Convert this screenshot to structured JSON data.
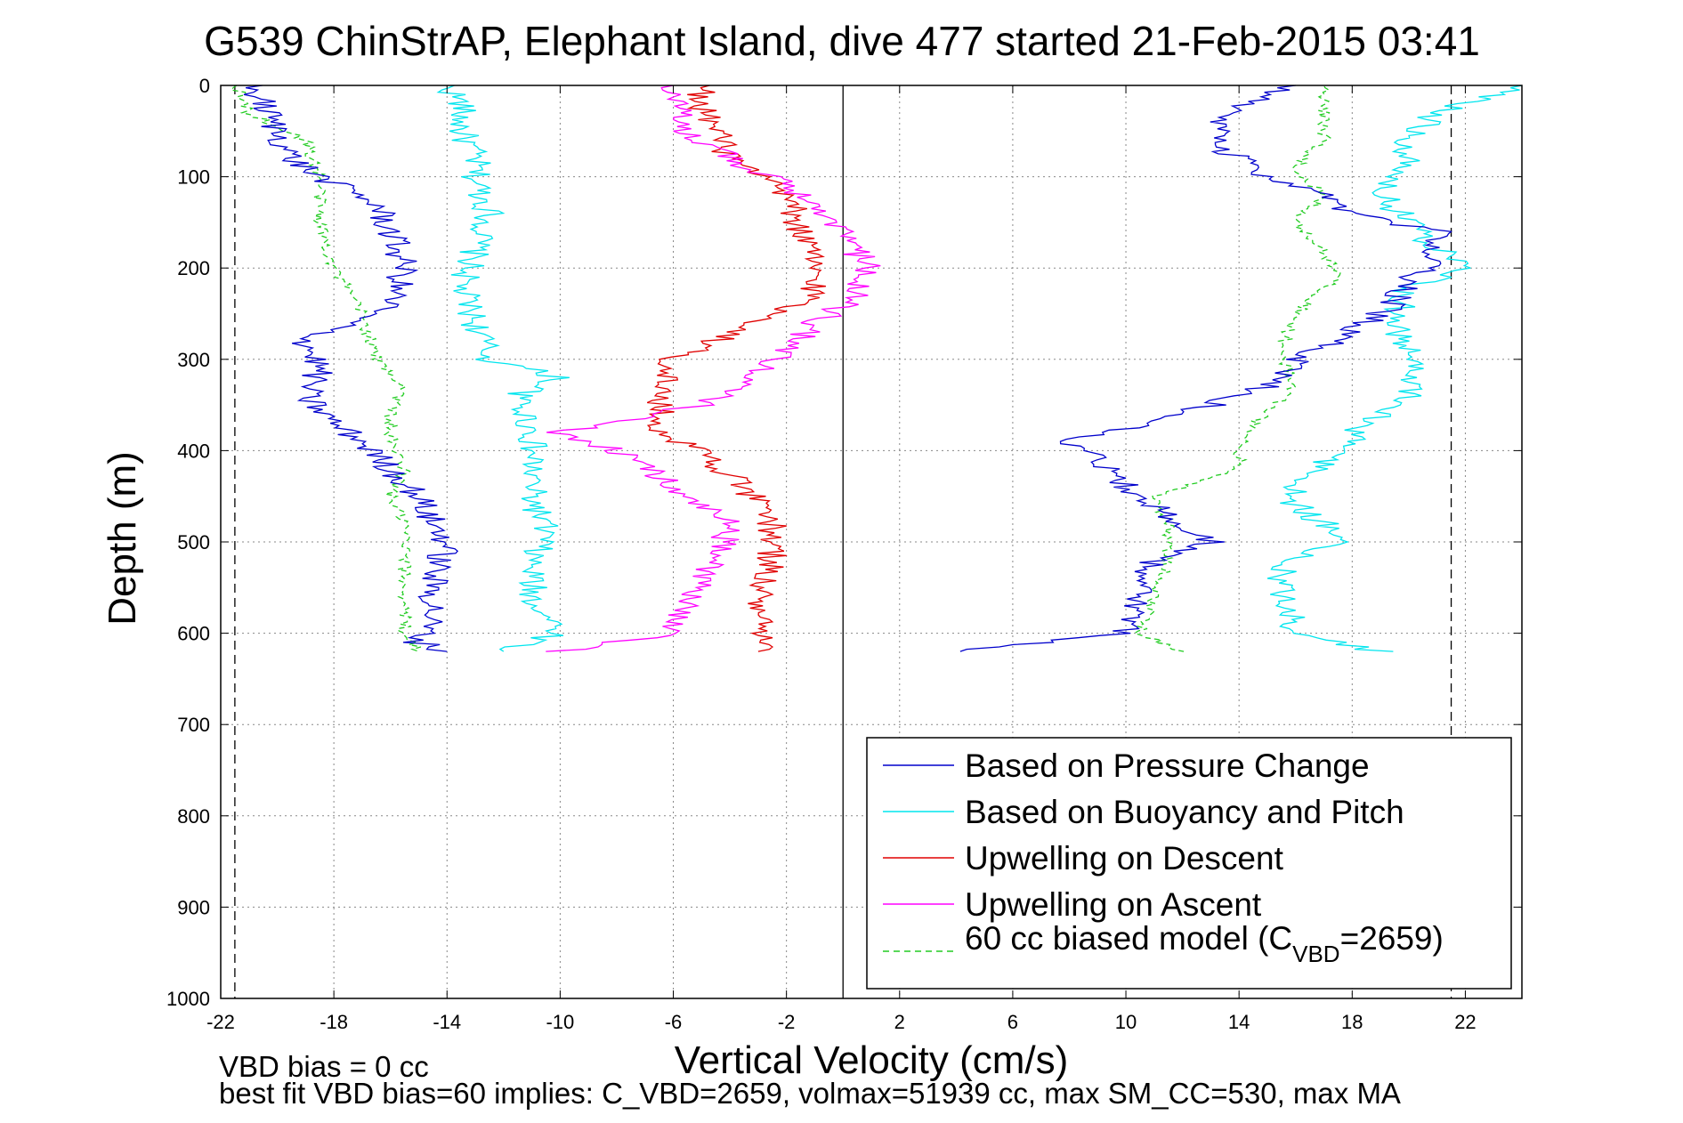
{
  "chart_data": {
    "type": "line",
    "title": "G539 ChinStrAP, Elephant Island, dive 477 started 21-Feb-2015 03:41",
    "xlabel": "Vertical Velocity (cm/s)",
    "ylabel": "Depth (m)",
    "xlim": [
      -22,
      24
    ],
    "ylim": [
      1000,
      0
    ],
    "y_reversed": true,
    "grid": true,
    "x_ticks": [
      -22,
      -18,
      -14,
      -10,
      -6,
      -2,
      2,
      6,
      10,
      14,
      18,
      22
    ],
    "x_tick_labels": [
      "-22",
      "-18",
      "-14",
      "-10",
      "-6",
      "-2",
      "2",
      "6",
      "10",
      "14",
      "18",
      "22"
    ],
    "y_ticks": [
      0,
      100,
      200,
      300,
      400,
      500,
      600,
      700,
      800,
      900,
      1000
    ],
    "y_tick_labels": [
      "0",
      "100",
      "200",
      "300",
      "400",
      "500",
      "600",
      "700",
      "800",
      "900",
      "1000"
    ],
    "reference_lines": {
      "zero_line_x": 0,
      "dashed_left_x": -21.5,
      "dashed_right_x": 21.5
    },
    "legend_position": "bottom-right",
    "legend": {
      "items": [
        {
          "label": "Based on Pressure Change",
          "color": "#0000cc",
          "style": "solid"
        },
        {
          "label": "Based on Buoyancy and Pitch",
          "color": "#00e5ee",
          "style": "solid"
        },
        {
          "label": "Upwelling on Descent",
          "color": "#e00000",
          "style": "solid"
        },
        {
          "label": "Upwelling on Ascent",
          "color": "#ff00ff",
          "style": "solid"
        }
      ],
      "model": {
        "prefix": "60 cc biased model (C",
        "sub": "VBD",
        "suffix": "=2659)",
        "color": "#22cc22",
        "style": "dashed"
      }
    },
    "series": [
      {
        "name": "Based on Pressure Change",
        "color": "#0000cc",
        "descent": {
          "depth": [
            0,
            20,
            50,
            80,
            100,
            130,
            160,
            200,
            240,
            280,
            310,
            340,
            370,
            390,
            420,
            450,
            480,
            500,
            540,
            580,
            610,
            620
          ],
          "v": [
            -21,
            -20.5,
            -20,
            -19.5,
            -18.5,
            -16.5,
            -16,
            -15.5,
            -16,
            -19,
            -18.5,
            -19,
            -18,
            -17,
            -16,
            -15,
            -14.5,
            -14,
            -14.5,
            -14.5,
            -15,
            -14
          ]
        },
        "ascent": {
          "depth": [
            620,
            600,
            560,
            520,
            500,
            470,
            440,
            410,
            390,
            370,
            350,
            330,
            300,
            270,
            240,
            210,
            190,
            160,
            140,
            120,
            100,
            70,
            40,
            0
          ],
          "v": [
            4,
            10,
            10.5,
            11,
            13,
            11.5,
            10,
            9,
            8,
            11,
            13,
            15,
            16,
            18,
            19.5,
            20,
            21,
            21,
            18,
            17,
            15,
            13.5,
            13,
            16
          ]
        }
      },
      {
        "name": "Based on Buoyancy and Pitch",
        "color": "#00e5ee",
        "descent": {
          "depth": [
            0,
            20,
            50,
            80,
            100,
            140,
            180,
            220,
            260,
            300,
            320,
            340,
            380,
            400,
            450,
            490,
            520,
            560,
            600,
            620
          ],
          "v": [
            -14,
            -13.5,
            -13.5,
            -13,
            -13,
            -12.5,
            -13,
            -13.5,
            -13,
            -12.5,
            -10,
            -11.5,
            -11,
            -11,
            -11,
            -10.5,
            -11,
            -11,
            -10,
            -12
          ]
        },
        "ascent": {
          "depth": [
            620,
            600,
            560,
            520,
            500,
            460,
            430,
            400,
            380,
            340,
            300,
            260,
            220,
            200,
            180,
            150,
            120,
            90,
            60,
            30,
            0
          ],
          "v": [
            19,
            16,
            15.5,
            15.5,
            18,
            16,
            16,
            18,
            18,
            20,
            20,
            19.5,
            20,
            22,
            21,
            20,
            19,
            20,
            20,
            21,
            24
          ]
        }
      },
      {
        "name": "Upwelling on Descent",
        "color": "#e00000",
        "descent": {
          "depth": [
            0,
            20,
            50,
            80,
            100,
            120,
            160,
            200,
            230,
            260,
            300,
            340,
            380,
            400,
            440,
            480,
            520,
            560,
            600,
            620
          ],
          "v": [
            -5,
            -5,
            -4.5,
            -4,
            -3,
            -2,
            -1.5,
            -1,
            -1,
            -3,
            -6,
            -6.5,
            -6.5,
            -5,
            -3.5,
            -2.5,
            -2.5,
            -3,
            -3,
            -3
          ]
        }
      },
      {
        "name": "Upwelling on Ascent",
        "color": "#ff00ff",
        "ascent": {
          "depth": [
            620,
            600,
            560,
            520,
            480,
            440,
            400,
            380,
            350,
            320,
            290,
            260,
            230,
            200,
            170,
            140,
            110,
            80,
            50,
            20,
            0
          ],
          "v": [
            -10,
            -6,
            -5.5,
            -4.5,
            -4,
            -6,
            -8,
            -10,
            -5,
            -3,
            -2,
            -1,
            0.5,
            1,
            0,
            -0.5,
            -2,
            -4,
            -5.5,
            -6,
            -6
          ]
        }
      },
      {
        "name": "60 cc biased model",
        "color": "#22cc22",
        "descent": {
          "depth": [
            0,
            30,
            60,
            100,
            150,
            200,
            250,
            300,
            330,
            360,
            390,
            420,
            450,
            480,
            520,
            560,
            600,
            620
          ],
          "v": [
            -21.5,
            -21,
            -19,
            -18.5,
            -18.5,
            -18,
            -17,
            -16.5,
            -15.5,
            -16,
            -16,
            -15.5,
            -16,
            -15.5,
            -15.5,
            -15.5,
            -15.5,
            -15
          ]
        },
        "ascent": {
          "depth": [
            620,
            600,
            560,
            520,
            480,
            450,
            420,
            400,
            370,
            330,
            290,
            250,
            210,
            180,
            150,
            120,
            90,
            60,
            30,
            0
          ],
          "v": [
            12,
            10.5,
            11,
            11.5,
            11.5,
            11,
            14,
            14,
            14.5,
            16,
            15.5,
            16,
            17.5,
            17,
            16,
            17,
            16,
            17,
            17,
            17
          ]
        }
      }
    ]
  },
  "footer": {
    "line1": "VBD bias = 0 cc",
    "line2": "best fit VBD bias=60 implies: C_VBD=2659, volmax=51939 cc, max SM_CC=530, max MA"
  }
}
